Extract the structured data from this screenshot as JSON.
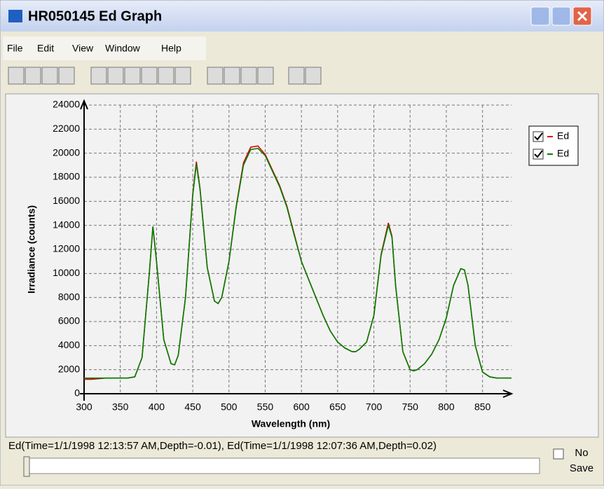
{
  "window": {
    "title": "HR050145 Ed Graph",
    "menu": [
      "File",
      "Edit",
      "View",
      "Window",
      "Help"
    ]
  },
  "chart_data": {
    "type": "line",
    "xlabel": "Wavelength (nm)",
    "ylabel": "Irradiance (counts)",
    "x": [
      300,
      310,
      320,
      330,
      340,
      350,
      360,
      370,
      380,
      390,
      395,
      400,
      410,
      420,
      425,
      430,
      440,
      450,
      455,
      460,
      470,
      480,
      485,
      490,
      500,
      510,
      520,
      530,
      540,
      550,
      560,
      570,
      580,
      590,
      600,
      610,
      620,
      630,
      640,
      650,
      660,
      670,
      675,
      680,
      690,
      700,
      710,
      720,
      725,
      730,
      740,
      750,
      755,
      760,
      770,
      780,
      790,
      800,
      810,
      820,
      825,
      830,
      840,
      850,
      860,
      870,
      880,
      890
    ],
    "series": [
      {
        "name": "Ed",
        "color": "#e00000",
        "values": [
          1200,
          1200,
          1250,
          1300,
          1300,
          1300,
          1300,
          1400,
          3000,
          10000,
          13900,
          11000,
          4500,
          2500,
          2400,
          3200,
          8000,
          16600,
          19300,
          17100,
          10500,
          7700,
          7500,
          8000,
          11000,
          15600,
          19200,
          20500,
          20600,
          19900,
          18600,
          17300,
          15600,
          13300,
          11000,
          9500,
          8000,
          6500,
          5200,
          4300,
          3800,
          3500,
          3500,
          3700,
          4300,
          6500,
          11600,
          14200,
          13100,
          9000,
          3500,
          2000,
          1900,
          2000,
          2500,
          3300,
          4500,
          6300,
          9000,
          10400,
          10300,
          9000,
          4000,
          1800,
          1400,
          1300,
          1300,
          1300
        ]
      },
      {
        "name": "Ed",
        "color": "#008000",
        "values": [
          1300,
          1300,
          1300,
          1300,
          1300,
          1300,
          1300,
          1400,
          3000,
          10000,
          13900,
          11000,
          4500,
          2500,
          2400,
          3200,
          8000,
          16500,
          19100,
          17000,
          10500,
          7700,
          7500,
          8000,
          11000,
          15500,
          19000,
          20300,
          20400,
          19800,
          18500,
          17200,
          15500,
          13200,
          11000,
          9500,
          8000,
          6500,
          5200,
          4300,
          3800,
          3500,
          3500,
          3700,
          4300,
          6500,
          11500,
          14000,
          13000,
          9000,
          3500,
          2000,
          1900,
          2000,
          2500,
          3300,
          4500,
          6300,
          9000,
          10400,
          10300,
          9000,
          4000,
          1800,
          1400,
          1300,
          1300,
          1300
        ]
      }
    ],
    "xlim": [
      300,
      890
    ],
    "ylim": [
      0,
      24000
    ],
    "xticks": [
      300,
      350,
      400,
      450,
      500,
      550,
      600,
      650,
      700,
      750,
      800,
      850
    ],
    "yticks": [
      0,
      2000,
      4000,
      6000,
      8000,
      10000,
      12000,
      14000,
      16000,
      18000,
      20000,
      22000,
      24000
    ],
    "grid": true,
    "legend": "right"
  },
  "status": {
    "text": "Ed(Time=1/1/1998 12:13:57 AM,Depth=-0.01), Ed(Time=1/1/1998 12:07:36 AM,Depth=0.02)",
    "checkbox": "No Save"
  }
}
